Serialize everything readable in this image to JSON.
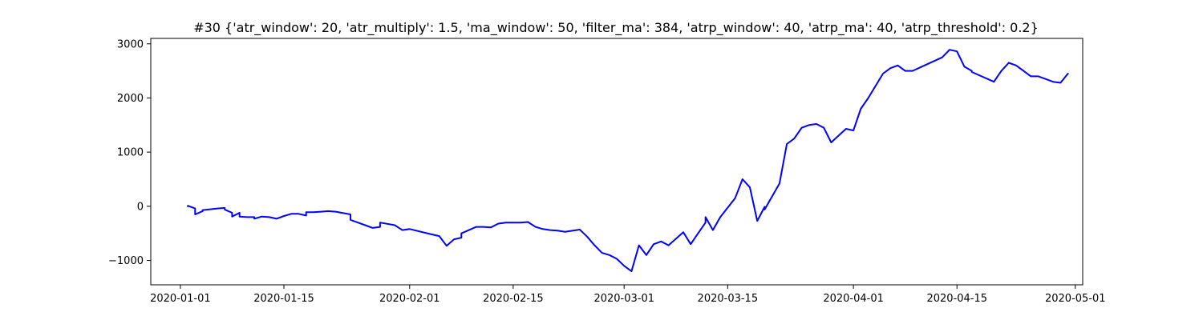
{
  "chart_data": {
    "type": "line",
    "title": "#30 {'atr_window': 20, 'atr_multiply': 1.5, 'ma_window': 50, 'filter_ma': 384, 'atrp_window': 40, 'atrp_ma': 40, 'atrp_threshold': 0.2}",
    "xlabel": "",
    "ylabel": "",
    "xlim": [
      "2019-12-28",
      "2020-05-02"
    ],
    "ylim": [
      -1450,
      3100
    ],
    "x_ticks": [
      "2020-01-01",
      "2020-01-15",
      "2020-02-01",
      "2020-02-15",
      "2020-03-01",
      "2020-03-15",
      "2020-04-01",
      "2020-04-15",
      "2020-05-01"
    ],
    "y_ticks": [
      -1000,
      0,
      1000,
      2000,
      3000
    ],
    "y_tick_labels": [
      "−1000",
      "0",
      "1000",
      "2000",
      "3000"
    ],
    "grid": false,
    "series": [
      {
        "color": "#0000ff",
        "x": [
          "2020-01-02",
          "2020-01-02",
          "2020-01-03",
          "2020-01-03",
          "2020-01-03",
          "2020-01-04",
          "2020-01-04",
          "2020-01-06",
          "2020-01-07",
          "2020-01-07",
          "2020-01-08",
          "2020-01-08",
          "2020-01-09",
          "2020-01-09",
          "2020-01-10",
          "2020-01-11",
          "2020-01-11",
          "2020-01-12",
          "2020-01-13",
          "2020-01-14",
          "2020-01-15",
          "2020-01-16",
          "2020-01-17",
          "2020-01-18",
          "2020-01-18",
          "2020-01-19",
          "2020-01-20",
          "2020-01-21",
          "2020-01-22",
          "2020-01-24",
          "2020-01-24",
          "2020-01-25",
          "2020-01-25",
          "2020-01-26",
          "2020-01-27",
          "2020-01-28",
          "2020-01-28",
          "2020-01-30",
          "2020-01-31",
          "2020-02-01",
          "2020-02-04",
          "2020-02-05",
          "2020-02-06",
          "2020-02-07",
          "2020-02-08",
          "2020-02-08",
          "2020-02-10",
          "2020-02-11",
          "2020-02-12",
          "2020-02-13",
          "2020-02-14",
          "2020-02-16",
          "2020-02-17",
          "2020-02-18",
          "2020-02-19",
          "2020-02-20",
          "2020-02-21",
          "2020-02-22",
          "2020-02-24",
          "2020-02-25",
          "2020-02-26",
          "2020-02-27",
          "2020-02-28",
          "2020-02-29",
          "2020-03-01",
          "2020-03-02",
          "2020-03-03",
          "2020-03-04",
          "2020-03-05",
          "2020-03-06",
          "2020-03-07",
          "2020-03-09",
          "2020-03-10",
          "2020-03-11",
          "2020-03-12",
          "2020-03-12",
          "2020-03-13",
          "2020-03-14",
          "2020-03-16",
          "2020-03-17",
          "2020-03-18",
          "2020-03-19",
          "2020-03-20",
          "2020-03-20",
          "2020-03-22",
          "2020-03-23",
          "2020-03-24",
          "2020-03-25",
          "2020-03-26",
          "2020-03-27",
          "2020-03-28",
          "2020-03-29",
          "2020-03-31",
          "2020-04-01",
          "2020-04-02",
          "2020-04-03",
          "2020-04-05",
          "2020-04-06",
          "2020-04-07",
          "2020-04-08",
          "2020-04-09",
          "2020-04-13",
          "2020-04-14",
          "2020-04-15",
          "2020-04-16",
          "2020-04-17",
          "2020-04-17",
          "2020-04-20",
          "2020-04-21",
          "2020-04-22",
          "2020-04-23",
          "2020-04-24",
          "2020-04-25",
          "2020-04-26",
          "2020-04-27",
          "2020-04-28",
          "2020-04-29",
          "2020-04-30"
        ],
        "y": [
          0,
          10,
          -40,
          -60,
          -150,
          -90,
          -70,
          -40,
          -30,
          -60,
          -120,
          -190,
          -120,
          -190,
          -200,
          -200,
          -230,
          -190,
          -200,
          -230,
          -180,
          -140,
          -140,
          -170,
          -110,
          -110,
          -100,
          -90,
          -100,
          -150,
          -250,
          -300,
          -300,
          -350,
          -400,
          -380,
          -300,
          -350,
          -440,
          -420,
          -520,
          -550,
          -730,
          -610,
          -580,
          -500,
          -380,
          -380,
          -390,
          -320,
          -300,
          -300,
          -290,
          -380,
          -420,
          -440,
          -450,
          -470,
          -430,
          -560,
          -720,
          -860,
          -900,
          -970,
          -1100,
          -1200,
          -720,
          -900,
          -700,
          -650,
          -720,
          -480,
          -700,
          -500,
          -300,
          -200,
          -440,
          -200,
          150,
          500,
          350,
          -270,
          -10,
          -60,
          420,
          1150,
          1250,
          1450,
          1500,
          1520,
          1450,
          1180,
          1430,
          1400,
          1800,
          2000,
          2450,
          2550,
          2600,
          2500,
          2500,
          2750,
          2890,
          2860,
          2580,
          2500,
          2480,
          2300,
          2500,
          2650,
          2600,
          2500,
          2400,
          2400,
          2350,
          2300,
          2280,
          2450
        ]
      }
    ]
  }
}
